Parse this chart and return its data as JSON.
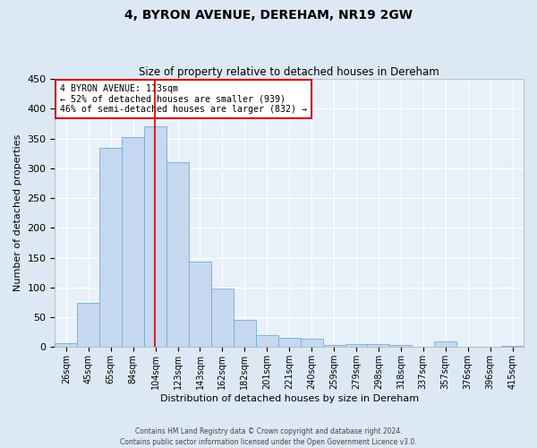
{
  "title": "4, BYRON AVENUE, DEREHAM, NR19 2GW",
  "subtitle": "Size of property relative to detached houses in Dereham",
  "xlabel": "Distribution of detached houses by size in Dereham",
  "ylabel": "Number of detached properties",
  "bin_labels": [
    "26sqm",
    "45sqm",
    "65sqm",
    "84sqm",
    "104sqm",
    "123sqm",
    "143sqm",
    "162sqm",
    "182sqm",
    "201sqm",
    "221sqm",
    "240sqm",
    "259sqm",
    "279sqm",
    "298sqm",
    "318sqm",
    "337sqm",
    "357sqm",
    "376sqm",
    "396sqm",
    "415sqm"
  ],
  "bar_values": [
    7,
    75,
    335,
    353,
    370,
    310,
    143,
    99,
    46,
    20,
    16,
    14,
    3,
    5,
    5,
    4,
    1,
    10,
    1,
    1,
    2
  ],
  "bar_color": "#c5d8f0",
  "bar_edge_color": "#7aaad0",
  "property_line_label": "4 BYRON AVENUE: 113sqm",
  "annotation_line1": "← 52% of detached houses are smaller (939)",
  "annotation_line2": "46% of semi-detached houses are larger (832) →",
  "annotation_box_color": "#ffffff",
  "annotation_box_edge_color": "#cc0000",
  "vline_color": "#cc0000",
  "vline_position": 4.47,
  "ylim": [
    0,
    450
  ],
  "yticks": [
    0,
    50,
    100,
    150,
    200,
    250,
    300,
    350,
    400,
    450
  ],
  "footer_line1": "Contains HM Land Registry data © Crown copyright and database right 2024.",
  "footer_line2": "Contains public sector information licensed under the Open Government Licence v3.0.",
  "background_color": "#dce9f5",
  "plot_bg_color": "#e8f1fa",
  "grid_color": "#ffffff",
  "title_fontsize": 10,
  "subtitle_fontsize": 8.5,
  "ylabel_fontsize": 8,
  "xlabel_fontsize": 8,
  "ytick_fontsize": 8,
  "xtick_fontsize": 7
}
